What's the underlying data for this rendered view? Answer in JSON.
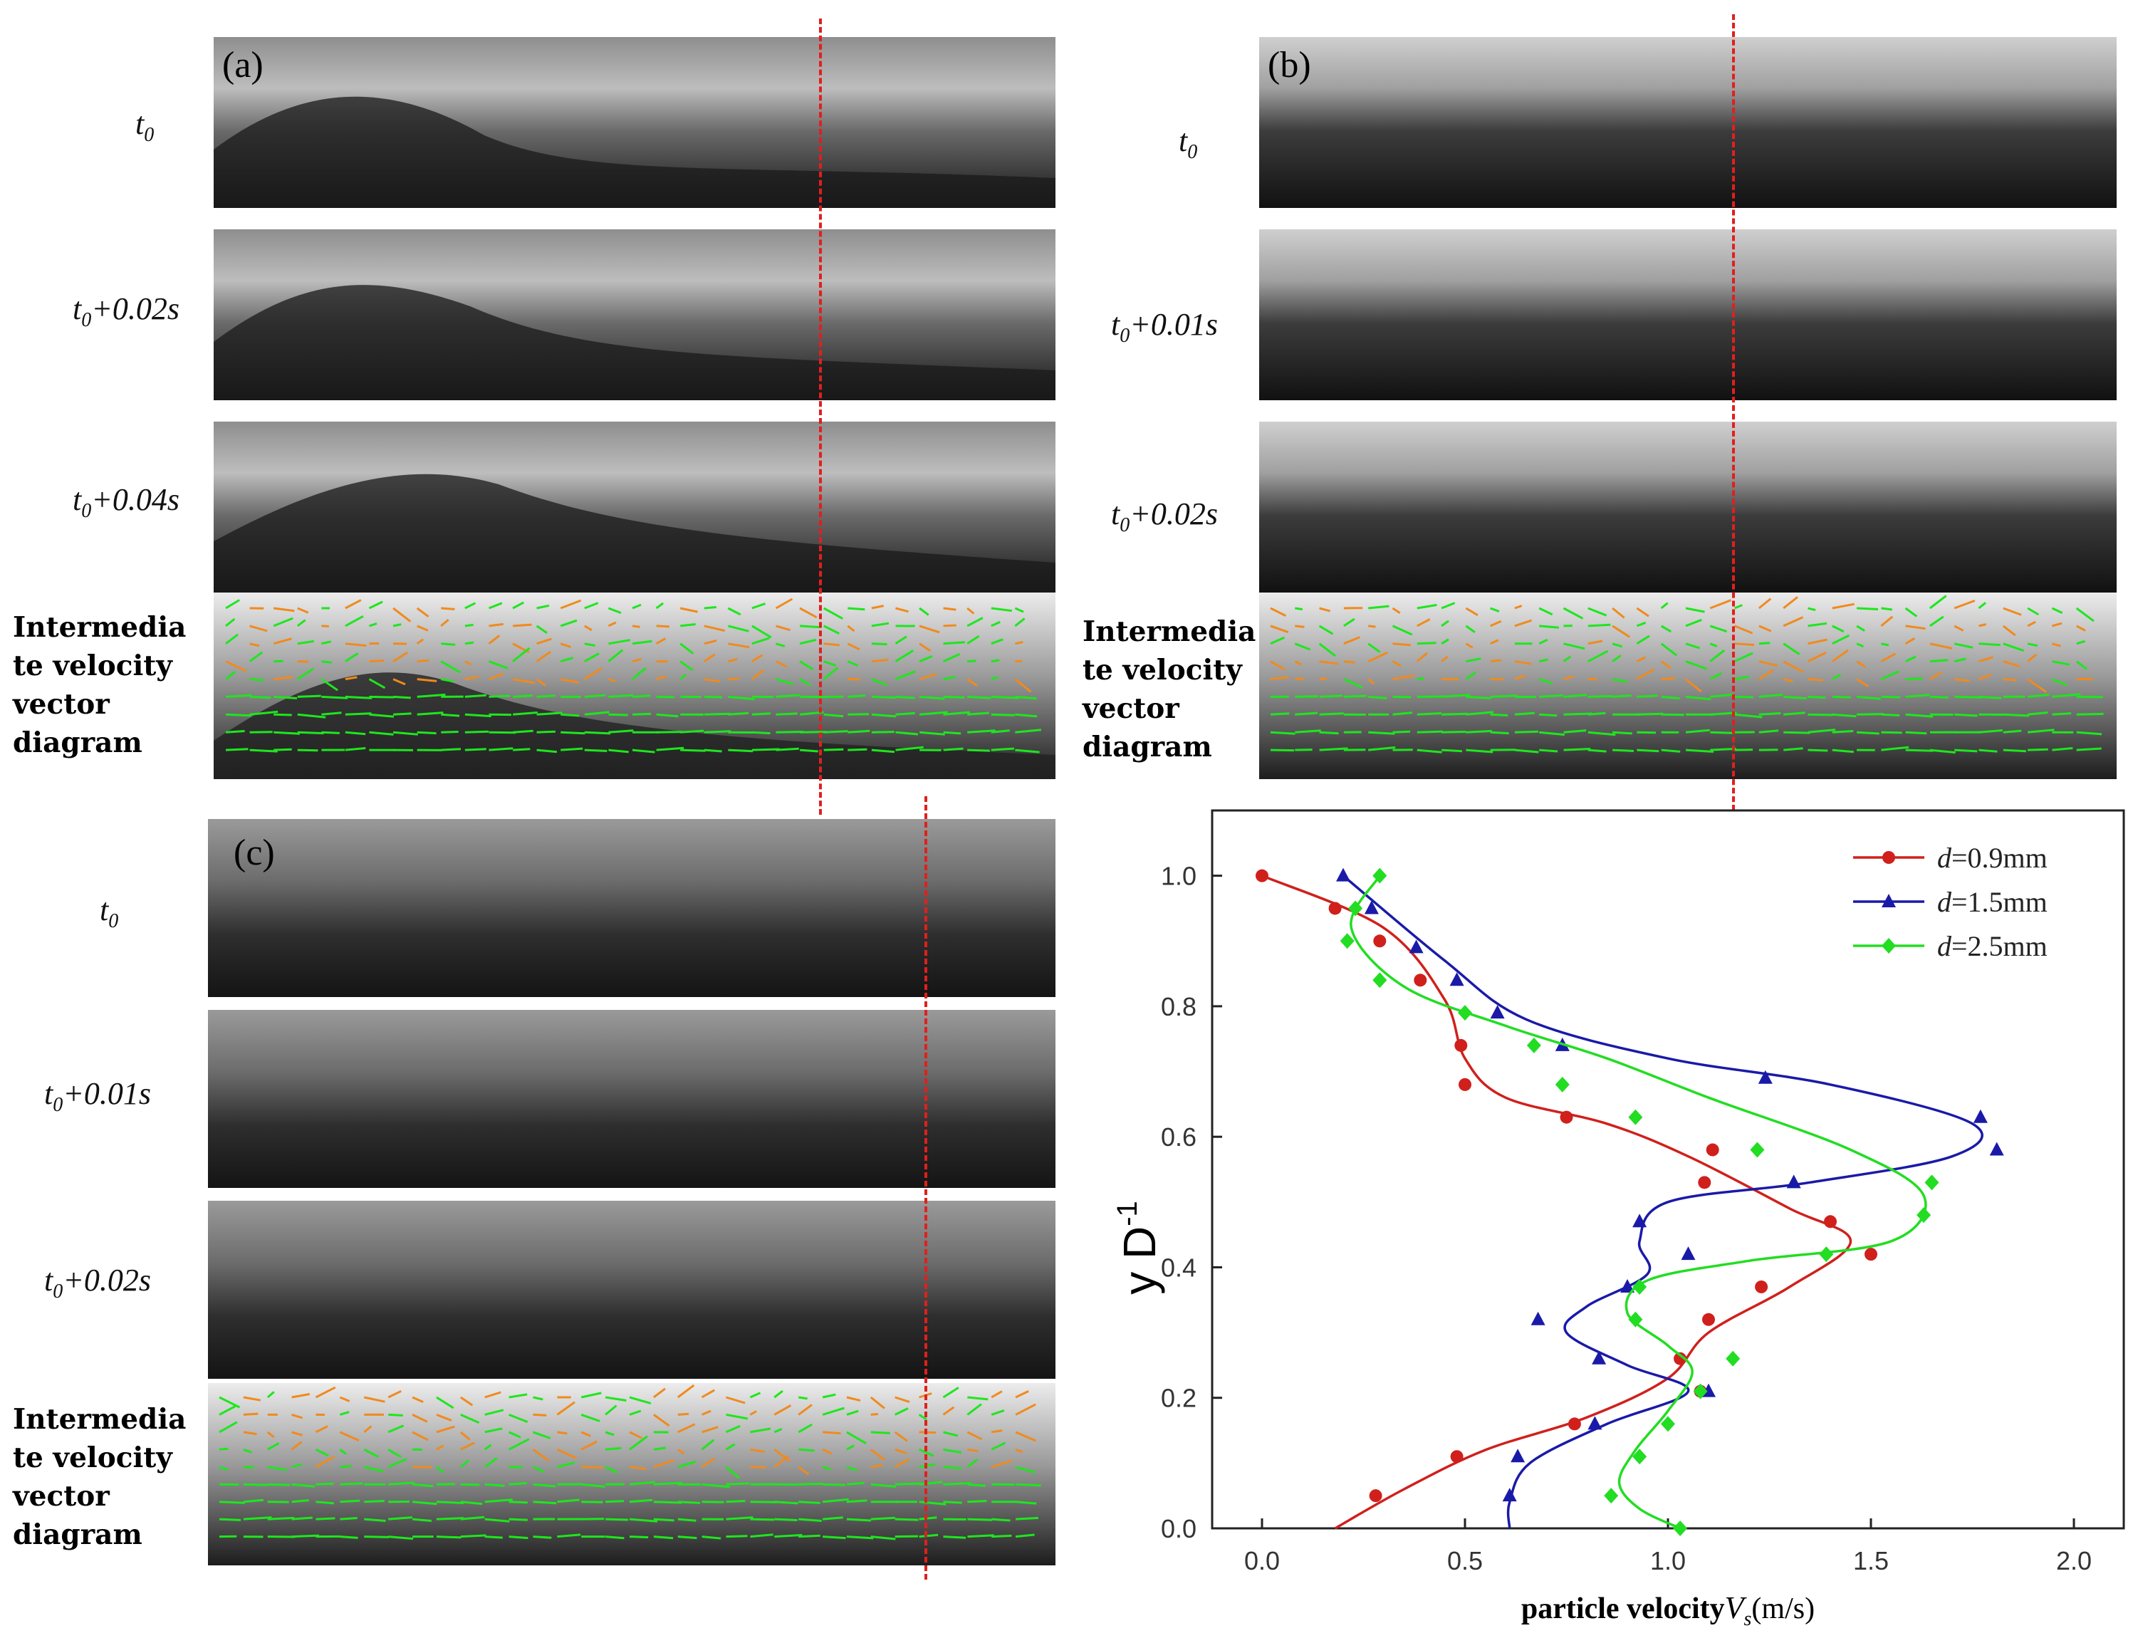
{
  "panels": {
    "a": {
      "letter": "(a)",
      "frames": [
        "+0.02s",
        "+0.04s"
      ]
    },
    "b": {
      "letter": "(b)",
      "frames": [
        "+0.01s",
        "+0.02s"
      ]
    },
    "c": {
      "letter": "(c)",
      "frames": [
        "+0.01s",
        "+0.02s"
      ]
    },
    "t0_base": "t",
    "t0_sub": "0",
    "vector_label_lines": [
      "Intermedia",
      "te velocity",
      "vector",
      "diagram"
    ]
  },
  "colors": {
    "vector_green": "#1ee61e",
    "vector_orange": "#f08a1e",
    "guide_red": "#e0201c"
  },
  "chart_data": {
    "type": "line",
    "ylabel_base": "y D",
    "ylabel_exp": "-1",
    "xlabel_text": "particle velocity",
    "xlabel_symbol": "V",
    "xlabel_sub": "s",
    "xlabel_unit": "(m/s)",
    "xlim": [
      0.0,
      2.0
    ],
    "ylim": [
      0.0,
      1.1
    ],
    "xticks": [
      "0.0",
      "0.5",
      "1.0",
      "1.5",
      "2.0"
    ],
    "yticks": [
      "0.0",
      "0.2",
      "0.4",
      "0.6",
      "0.8",
      "1.0"
    ],
    "legend_position": "top-right",
    "series": [
      {
        "name": "d=0.9mm",
        "name_italic": "d",
        "name_rest": "=0.9mm",
        "color": "#d0201c",
        "marker": "circle",
        "points": [
          [
            0.0,
            1.0
          ],
          [
            0.18,
            0.95
          ],
          [
            0.29,
            0.9
          ],
          [
            0.39,
            0.84
          ],
          [
            0.49,
            0.74
          ],
          [
            0.5,
            0.68
          ],
          [
            0.75,
            0.63
          ],
          [
            1.09,
            0.53
          ],
          [
            1.11,
            0.58
          ],
          [
            1.4,
            0.47
          ],
          [
            1.5,
            0.42
          ],
          [
            1.23,
            0.37
          ],
          [
            1.1,
            0.32
          ],
          [
            1.03,
            0.26
          ],
          [
            1.08,
            0.21
          ],
          [
            0.77,
            0.16
          ],
          [
            0.48,
            0.11
          ],
          [
            0.28,
            0.05
          ]
        ],
        "curve": [
          [
            0.0,
            1.0
          ],
          [
            0.3,
            0.92
          ],
          [
            0.45,
            0.81
          ],
          [
            0.5,
            0.72
          ],
          [
            0.6,
            0.66
          ],
          [
            0.85,
            0.62
          ],
          [
            1.05,
            0.57
          ],
          [
            1.3,
            0.49
          ],
          [
            1.45,
            0.44
          ],
          [
            1.3,
            0.37
          ],
          [
            1.1,
            0.3
          ],
          [
            1.0,
            0.23
          ],
          [
            0.8,
            0.17
          ],
          [
            0.55,
            0.12
          ],
          [
            0.35,
            0.06
          ],
          [
            0.18,
            0.0
          ]
        ]
      },
      {
        "name": "d=1.5mm",
        "name_italic": "d",
        "name_rest": "=1.5mm",
        "color": "#1a1aa8",
        "marker": "triangle",
        "points": [
          [
            0.2,
            1.0
          ],
          [
            0.27,
            0.95
          ],
          [
            0.38,
            0.89
          ],
          [
            0.48,
            0.84
          ],
          [
            0.58,
            0.79
          ],
          [
            0.74,
            0.74
          ],
          [
            1.24,
            0.69
          ],
          [
            1.77,
            0.63
          ],
          [
            1.81,
            0.58
          ],
          [
            1.31,
            0.53
          ],
          [
            0.93,
            0.47
          ],
          [
            1.05,
            0.42
          ],
          [
            0.9,
            0.37
          ],
          [
            0.68,
            0.32
          ],
          [
            0.83,
            0.26
          ],
          [
            1.1,
            0.21
          ],
          [
            0.82,
            0.16
          ],
          [
            0.63,
            0.11
          ],
          [
            0.61,
            0.05
          ]
        ],
        "curve": [
          [
            0.2,
            1.0
          ],
          [
            0.45,
            0.87
          ],
          [
            0.65,
            0.78
          ],
          [
            1.0,
            0.72
          ],
          [
            1.4,
            0.68
          ],
          [
            1.75,
            0.62
          ],
          [
            1.7,
            0.57
          ],
          [
            1.35,
            0.53
          ],
          [
            1.0,
            0.5
          ],
          [
            0.93,
            0.44
          ],
          [
            0.95,
            0.39
          ],
          [
            0.8,
            0.34
          ],
          [
            0.75,
            0.3
          ],
          [
            0.9,
            0.25
          ],
          [
            1.05,
            0.21
          ],
          [
            0.85,
            0.16
          ],
          [
            0.66,
            0.1
          ],
          [
            0.61,
            0.04
          ],
          [
            0.61,
            0.0
          ]
        ]
      },
      {
        "name": "d=2.5mm",
        "name_italic": "d",
        "name_rest": "=2.5mm",
        "color": "#22dd22",
        "marker": "diamond",
        "points": [
          [
            0.29,
            1.0
          ],
          [
            0.23,
            0.95
          ],
          [
            0.21,
            0.9
          ],
          [
            0.29,
            0.84
          ],
          [
            0.5,
            0.79
          ],
          [
            0.67,
            0.74
          ],
          [
            0.74,
            0.68
          ],
          [
            0.92,
            0.63
          ],
          [
            1.22,
            0.58
          ],
          [
            1.65,
            0.53
          ],
          [
            1.63,
            0.48
          ],
          [
            1.39,
            0.42
          ],
          [
            0.93,
            0.37
          ],
          [
            0.92,
            0.32
          ],
          [
            1.16,
            0.26
          ],
          [
            1.08,
            0.21
          ],
          [
            1.0,
            0.16
          ],
          [
            0.93,
            0.11
          ],
          [
            0.86,
            0.05
          ],
          [
            1.03,
            0.0
          ]
        ],
        "curve": [
          [
            0.29,
            1.0
          ],
          [
            0.22,
            0.92
          ],
          [
            0.35,
            0.83
          ],
          [
            0.6,
            0.77
          ],
          [
            0.85,
            0.72
          ],
          [
            1.1,
            0.66
          ],
          [
            1.45,
            0.58
          ],
          [
            1.63,
            0.51
          ],
          [
            1.55,
            0.44
          ],
          [
            1.2,
            0.41
          ],
          [
            0.95,
            0.38
          ],
          [
            0.9,
            0.33
          ],
          [
            1.0,
            0.28
          ],
          [
            1.06,
            0.24
          ],
          [
            1.0,
            0.18
          ],
          [
            0.92,
            0.12
          ],
          [
            0.88,
            0.07
          ],
          [
            0.93,
            0.03
          ],
          [
            1.03,
            0.0
          ]
        ]
      }
    ]
  }
}
